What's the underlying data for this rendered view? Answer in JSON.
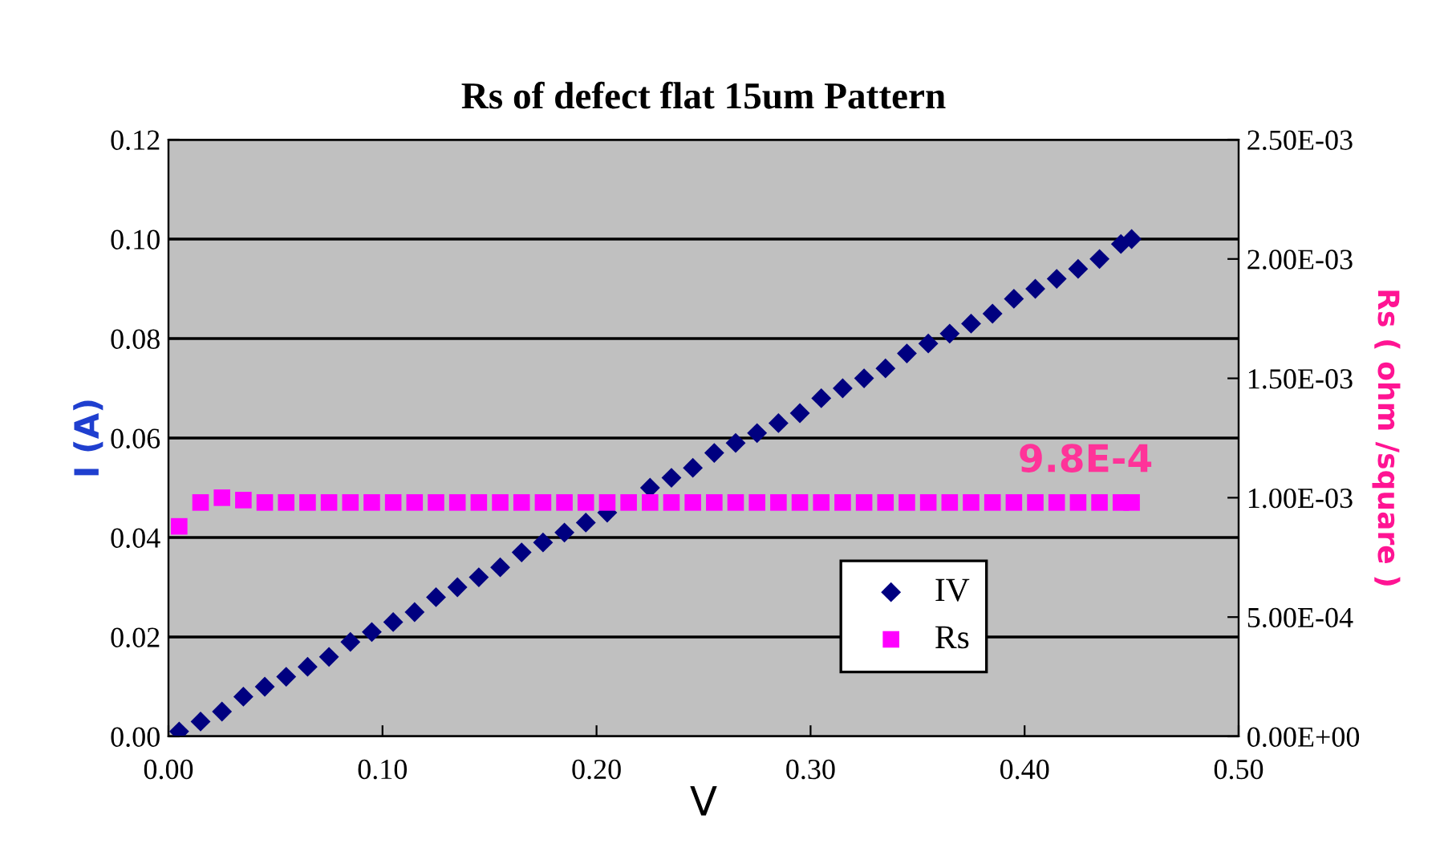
{
  "chart_data": {
    "type": "scatter",
    "title": "Rs of defect flat 15um Pattern",
    "xlabel": "V",
    "ylabel": "I (A)",
    "y2label": "Rs ( ohm /square )",
    "annotations": [
      "9.8E-4"
    ],
    "x": [
      0.005,
      0.015,
      0.025,
      0.035,
      0.045,
      0.055,
      0.065,
      0.075,
      0.085,
      0.095,
      0.105,
      0.115,
      0.125,
      0.135,
      0.145,
      0.155,
      0.165,
      0.175,
      0.185,
      0.195,
      0.205,
      0.215,
      0.225,
      0.235,
      0.245,
      0.255,
      0.265,
      0.275,
      0.285,
      0.295,
      0.305,
      0.315,
      0.325,
      0.335,
      0.345,
      0.355,
      0.365,
      0.375,
      0.385,
      0.395,
      0.405,
      0.415,
      0.425,
      0.435,
      0.445,
      0.45
    ],
    "series": [
      {
        "name": "IV",
        "color": "#000080",
        "marker": "diamond",
        "values": [
          0.001,
          0.003,
          0.005,
          0.008,
          0.01,
          0.012,
          0.014,
          0.016,
          0.019,
          0.021,
          0.023,
          0.025,
          0.028,
          0.03,
          0.032,
          0.034,
          0.037,
          0.039,
          0.041,
          0.043,
          0.045,
          null,
          0.05,
          0.052,
          0.054,
          0.057,
          0.059,
          0.061,
          0.063,
          0.065,
          0.068,
          0.07,
          0.072,
          0.074,
          0.077,
          0.079,
          0.081,
          0.083,
          0.085,
          0.088,
          0.09,
          0.092,
          0.094,
          0.096,
          0.099,
          0.1
        ]
      },
      {
        "name": "Rs",
        "color": "#ff00ff",
        "marker": "square",
        "axis": "y2",
        "values": [
          0.00088,
          0.00098,
          0.001,
          0.00099,
          0.00098,
          0.00098,
          0.00098,
          0.00098,
          0.00098,
          0.00098,
          0.00098,
          0.00098,
          0.00098,
          0.00098,
          0.00098,
          0.00098,
          0.00098,
          0.00098,
          0.00098,
          0.00098,
          0.00098,
          0.00098,
          0.00098,
          0.00098,
          0.00098,
          0.00098,
          0.00098,
          0.00098,
          0.00098,
          0.00098,
          0.00098,
          0.00098,
          0.00098,
          0.00098,
          0.00098,
          0.00098,
          0.00098,
          0.00098,
          0.00098,
          0.00098,
          0.00098,
          0.00098,
          0.00098,
          0.00098,
          0.00098,
          0.00098
        ]
      }
    ],
    "xlim": [
      0,
      0.5
    ],
    "xticks": [
      {
        "value": 0,
        "label": "0.00"
      },
      {
        "value": 0.1,
        "label": "0.10"
      },
      {
        "value": 0.2,
        "label": "0.20"
      },
      {
        "value": 0.3,
        "label": "0.30"
      },
      {
        "value": 0.4,
        "label": "0.40"
      },
      {
        "value": 0.5,
        "label": "0.50"
      }
    ],
    "ylim": [
      0,
      0.12
    ],
    "yticks": [
      {
        "value": 0,
        "label": "0.00"
      },
      {
        "value": 0.02,
        "label": "0.02"
      },
      {
        "value": 0.04,
        "label": "0.04"
      },
      {
        "value": 0.06,
        "label": "0.06"
      },
      {
        "value": 0.08,
        "label": "0.08"
      },
      {
        "value": 0.1,
        "label": "0.10"
      },
      {
        "value": 0.12,
        "label": "0.12"
      }
    ],
    "y2lim": [
      0,
      0.0025
    ],
    "y2ticks": [
      {
        "value": 0,
        "label": "0.00E+00"
      },
      {
        "value": 0.0005,
        "label": "5.00E-04"
      },
      {
        "value": 0.001,
        "label": "1.00E-03"
      },
      {
        "value": 0.0015,
        "label": "1.50E-03"
      },
      {
        "value": 0.002,
        "label": "2.00E-03"
      },
      {
        "value": 0.0025,
        "label": "2.50E-03"
      }
    ],
    "grid": "y",
    "legend": "bottom right"
  }
}
